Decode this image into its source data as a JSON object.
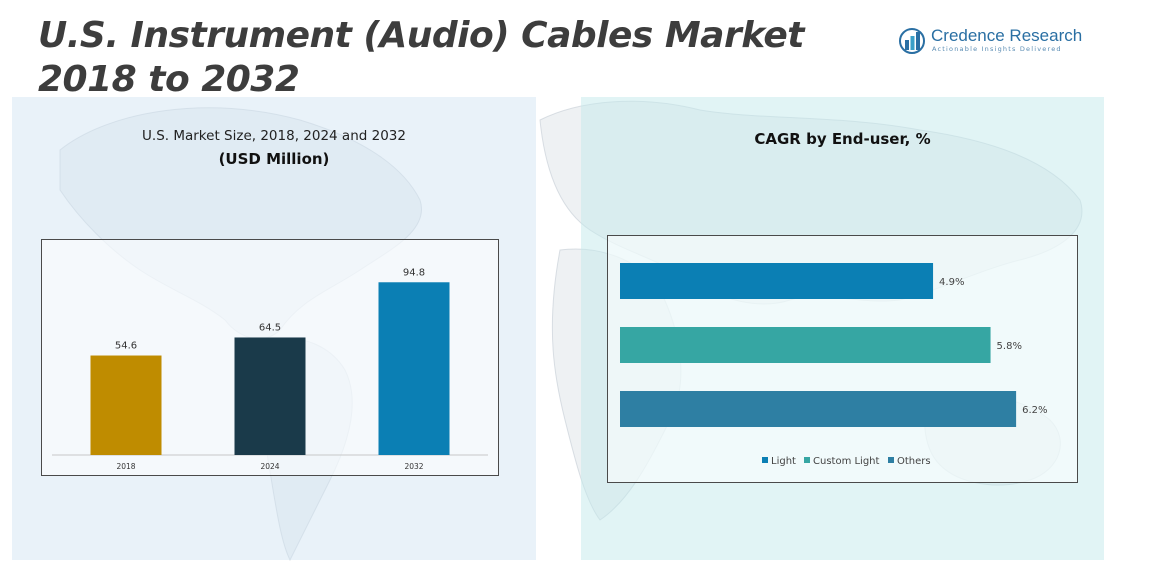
{
  "page": {
    "title": "U.S. Instrument (Audio) Cables Market 2018 to 2032"
  },
  "logo": {
    "name": "Credence Research",
    "tagline": "Actionable Insights Delivered"
  },
  "colors": {
    "bar_2018": "#bf8c00",
    "bar_2024": "#1a3a4a",
    "bar_2032": "#0b7fb4",
    "light": "#0b7fb4",
    "custom_light": "#36a6a3",
    "others": "#2e7fa3",
    "title_text": "#3d3d3d",
    "brand": "#2a6fa3"
  },
  "left_panel": {
    "title": "U.S. Market Size, 2018, 2024 and 2032",
    "subtitle": "(USD Million)"
  },
  "right_panel": {
    "title": "CAGR by End-user, %"
  },
  "chart_data": [
    {
      "type": "bar",
      "title": "U.S. Market Size, 2018, 2024 and 2032",
      "subtitle": "(USD Million)",
      "categories": [
        "2018",
        "2024",
        "2032"
      ],
      "values": [
        54.6,
        64.5,
        94.8
      ],
      "data_labels": [
        "54.6",
        "64.5",
        "94.8"
      ],
      "colors": [
        "#bf8c00",
        "#1a3a4a",
        "#0b7fb4"
      ],
      "grid": false,
      "legend": "none"
    },
    {
      "type": "bar",
      "orientation": "horizontal",
      "title": "CAGR by End-user, %",
      "series": [
        {
          "name": "Light",
          "value": 4.9,
          "label": "4.9%",
          "color": "#0b7fb4"
        },
        {
          "name": "Custom Light",
          "value": 5.8,
          "label": "5.8%",
          "color": "#36a6a3"
        },
        {
          "name": "Others",
          "value": 6.2,
          "label": "6.2%",
          "color": "#2e7fa3"
        }
      ],
      "grid": false,
      "legend": "bottom"
    }
  ]
}
